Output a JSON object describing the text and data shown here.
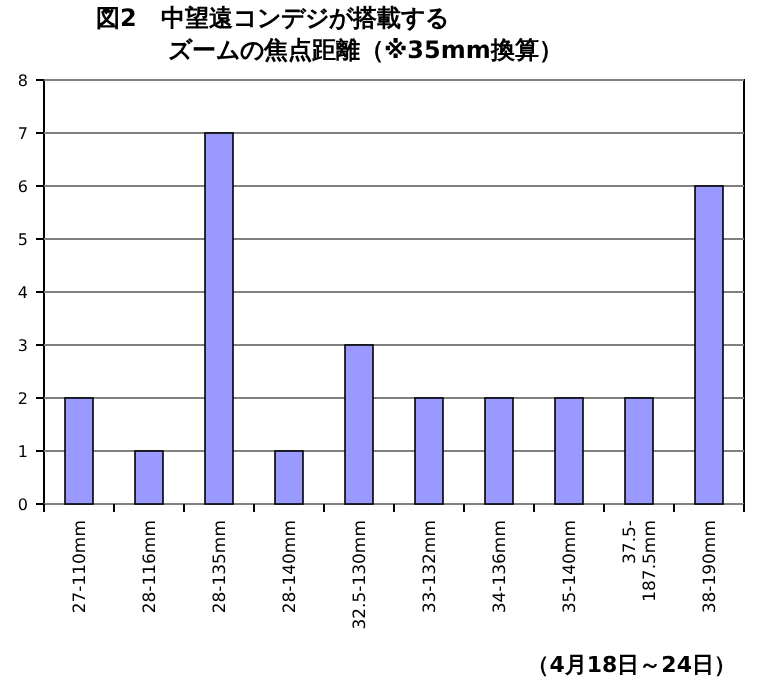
{
  "chart_data": {
    "type": "bar",
    "title": "図2　中望遠コンデジが搭載する",
    "subtitle": "ズームの焦点距離（※35mm換算）",
    "categories": [
      "27-110mm",
      "28-116mm",
      "28-135mm",
      "28-140mm",
      "32.5-130mm",
      "33-132mm",
      "34-136mm",
      "35-140mm",
      "37.5-\n187.5mm",
      "38-190mm"
    ],
    "values": [
      2,
      1,
      7,
      1,
      3,
      2,
      2,
      2,
      2,
      6
    ],
    "color": "#9999ff",
    "ylim": [
      0,
      8
    ],
    "yticks": [
      0,
      1,
      2,
      3,
      4,
      5,
      6,
      7,
      8
    ],
    "grid": "y",
    "annotations": [
      "（4月18日～24日）"
    ]
  }
}
